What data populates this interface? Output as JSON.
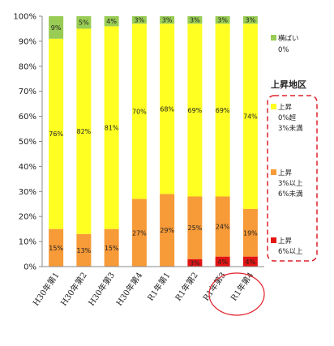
{
  "chart_data": {
    "type": "bar",
    "stacked": true,
    "categories": [
      "H30年第1",
      "H30年第2",
      "H30年第3",
      "H30年第4",
      "R1年第1",
      "R1年第2",
      "R1年第3",
      "R1年第4"
    ],
    "series": [
      {
        "name": "上昇 6%以上",
        "color": "#e41414",
        "values": [
          0,
          0,
          0,
          0,
          0,
          3,
          4,
          4
        ],
        "labels": [
          "",
          "",
          "",
          "",
          "",
          "3%",
          "4%",
          "4%"
        ]
      },
      {
        "name": "上昇 3%以上 6%未満",
        "color": "#f79a38",
        "values": [
          15,
          13,
          15,
          27,
          29,
          25,
          24,
          19
        ],
        "labels": [
          "15%",
          "13%",
          "15%",
          "27%",
          "29%",
          "25%",
          "24%",
          "19%"
        ]
      },
      {
        "name": "上昇 0%超 3%未満",
        "color": "#ffff22",
        "values": [
          76,
          82,
          81,
          70,
          68,
          69,
          69,
          74
        ],
        "labels": [
          "76%",
          "82%",
          "81%",
          "70%",
          "68%",
          "69%",
          "69%",
          "74%"
        ]
      },
      {
        "name": "横ばい 0%",
        "color": "#99cc55",
        "values": [
          9,
          5,
          4,
          3,
          3,
          3,
          3,
          3
        ],
        "labels": [
          "9%",
          "5%",
          "4%",
          "3%",
          "3%",
          "3%",
          "3%",
          "3%"
        ]
      }
    ],
    "yticks": [
      "0%",
      "10%",
      "20%",
      "30%",
      "40%",
      "50%",
      "60%",
      "70%",
      "80%",
      "90%",
      "100%"
    ],
    "ylim": [
      0,
      100
    ],
    "legend": {
      "flat": {
        "line1": "横ばい",
        "line2": "0%"
      },
      "group_title": "上昇地区",
      "items": [
        {
          "line1": "上昇",
          "line2": "0%超",
          "line3": "3%未満"
        },
        {
          "line1": "上昇",
          "line2": "3%以上",
          "line3": "6%未満"
        },
        {
          "line1": "上昇",
          "line2": "6%以上",
          "line3": ""
        }
      ]
    },
    "highlight_category": "R1年第4",
    "colors": {
      "border": "#bbbbbb",
      "highlight_ellipse": "#e0202a",
      "legend_box": "#e0202a"
    }
  }
}
